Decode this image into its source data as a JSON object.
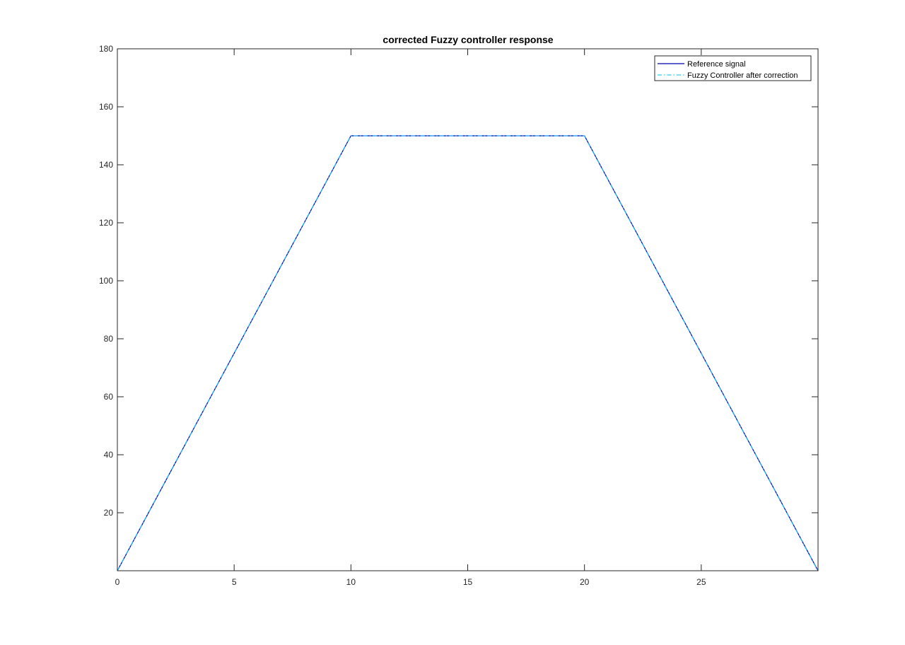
{
  "chart_data": {
    "type": "line",
    "title": "corrected Fuzzy controller response",
    "xlabel": "",
    "ylabel": "",
    "xlim": [
      0,
      30
    ],
    "ylim": [
      0,
      180
    ],
    "xticks": [
      0,
      5,
      10,
      15,
      20,
      25
    ],
    "yticks": [
      20,
      40,
      60,
      80,
      100,
      120,
      140,
      160,
      180
    ],
    "grid": false,
    "legend_position": "top-right",
    "series": [
      {
        "name": "Reference signal",
        "color": "#0000aa",
        "style": "solid",
        "x": [
          0,
          10,
          20,
          30
        ],
        "y": [
          0,
          150,
          150,
          0
        ]
      },
      {
        "name": "Fuzzy Controller after correction",
        "color": "#00bfff",
        "style": "dashdot",
        "x": [
          0,
          10,
          20,
          30
        ],
        "y": [
          0,
          150,
          150,
          0
        ]
      }
    ]
  }
}
